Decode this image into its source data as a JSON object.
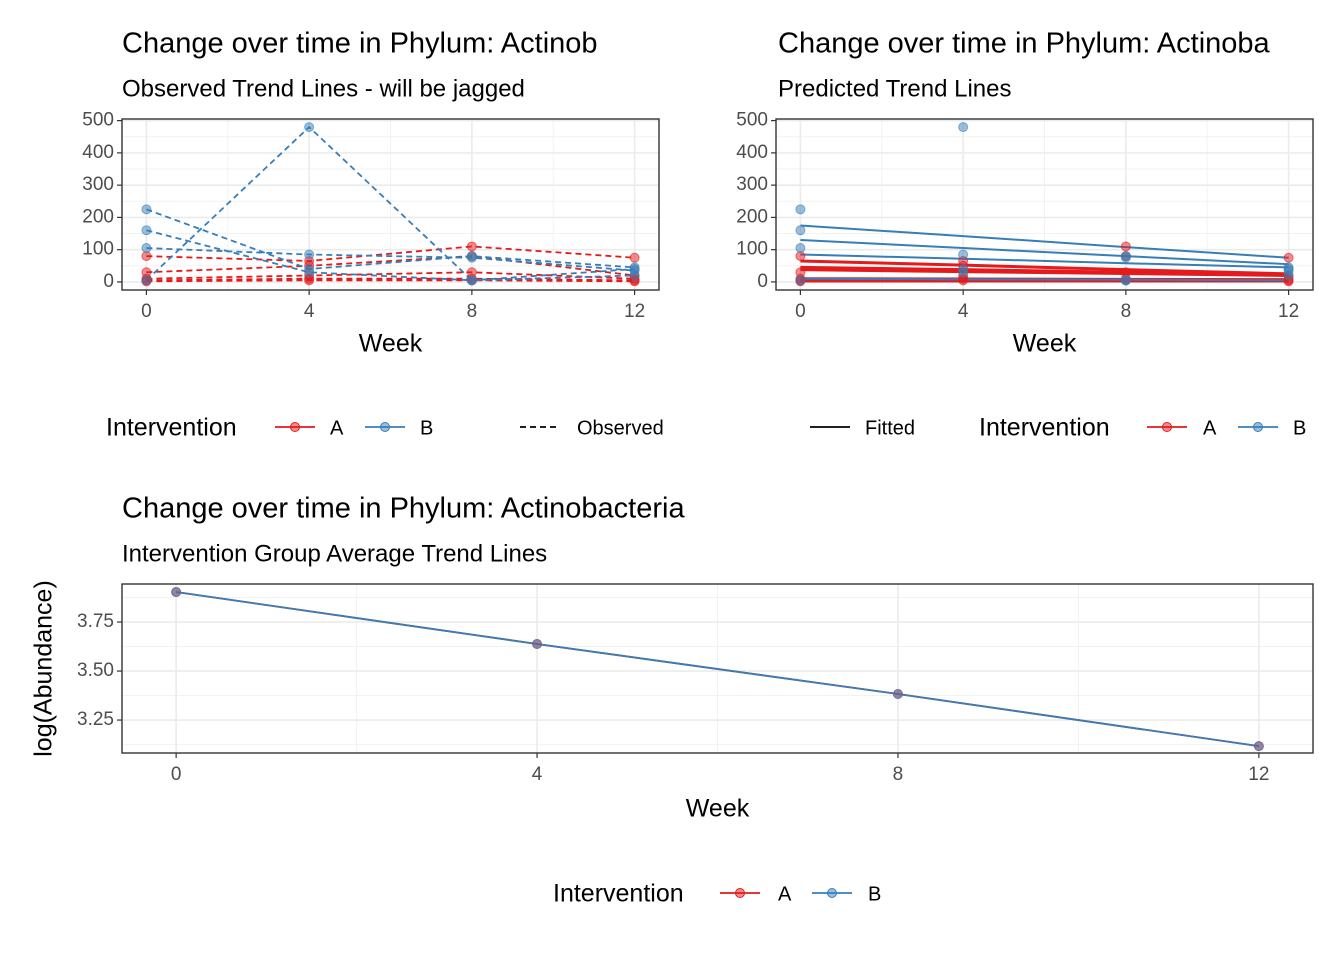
{
  "chart_data": [
    {
      "type": "line",
      "title": "Change over time in Phylum: Actinob",
      "subtitle": "Observed Trend Lines - will be jagged",
      "xlabel": "Week",
      "x": [
        0,
        4,
        8,
        12
      ],
      "xlim": [
        -0.6,
        12.6
      ],
      "xticks": [
        0,
        4,
        8,
        12
      ],
      "minor_xticks": [
        2,
        6,
        10
      ],
      "ylim": [
        -25,
        505
      ],
      "yticks": [
        0,
        100,
        200,
        300,
        400,
        500
      ],
      "minor_yticks": [
        50,
        150,
        250,
        350,
        450
      ],
      "grid": true,
      "linestyle": "dashed",
      "series": [
        {
          "color": "#E41A1C",
          "values": [
            80,
            65,
            110,
            75
          ]
        },
        {
          "color": "#E41A1C",
          "values": [
            30,
            50,
            80,
            20
          ]
        },
        {
          "color": "#E41A1C",
          "values": [
            10,
            20,
            30,
            10
          ]
        },
        {
          "color": "#E41A1C",
          "values": [
            5,
            10,
            10,
            5
          ]
        },
        {
          "color": "#E41A1C",
          "values": [
            2,
            5,
            5,
            2
          ]
        },
        {
          "color": "#377EB8",
          "values": [
            5,
            480,
            5,
            20
          ]
        },
        {
          "color": "#377EB8",
          "values": [
            225,
            40,
            80,
            45
          ]
        },
        {
          "color": "#377EB8",
          "values": [
            105,
            85,
            75,
            35
          ]
        },
        {
          "color": "#377EB8",
          "values": [
            160,
            30,
            5,
            40
          ]
        }
      ],
      "legend": {
        "title": "Intervention",
        "items": [
          {
            "label": "A",
            "color": "#E41A1C"
          },
          {
            "label": "B",
            "color": "#377EB8"
          }
        ]
      },
      "linetype_legend": {
        "label": "Observed",
        "style": "dashed"
      }
    },
    {
      "type": "line",
      "title": "Change over time in Phylum: Actinoba",
      "subtitle": "Predicted Trend Lines",
      "xlabel": "Week",
      "x": [
        0,
        4,
        8,
        12
      ],
      "xlim": [
        -0.6,
        12.6
      ],
      "xticks": [
        0,
        4,
        8,
        12
      ],
      "minor_xticks": [
        2,
        6,
        10
      ],
      "ylim": [
        -25,
        505
      ],
      "yticks": [
        0,
        100,
        200,
        300,
        400,
        500
      ],
      "minor_yticks": [
        50,
        150,
        250,
        350,
        450
      ],
      "grid": true,
      "linestyle": "solid",
      "series": [
        {
          "color": "#E41A1C",
          "values": [
            80,
            65,
            110,
            75
          ],
          "fitted": [
            65,
            52,
            38,
            25
          ]
        },
        {
          "color": "#E41A1C",
          "values": [
            30,
            50,
            80,
            20
          ],
          "fitted": [
            45,
            38,
            30,
            22
          ]
        },
        {
          "color": "#E41A1C",
          "values": [
            10,
            20,
            30,
            10
          ],
          "fitted": [
            38,
            32,
            26,
            20
          ]
        },
        {
          "color": "#E41A1C",
          "values": [
            5,
            10,
            10,
            5
          ],
          "fitted": [
            10,
            9,
            8,
            7
          ]
        },
        {
          "color": "#E41A1C",
          "values": [
            2,
            5,
            5,
            2
          ],
          "fitted": [
            3,
            3,
            3,
            3
          ]
        },
        {
          "color": "#377EB8",
          "values": [
            5,
            480,
            5,
            20
          ],
          "fitted": [
            130,
            105,
            80,
            55
          ]
        },
        {
          "color": "#377EB8",
          "values": [
            225,
            40,
            80,
            45
          ],
          "fitted": [
            175,
            142,
            108,
            75
          ]
        },
        {
          "color": "#377EB8",
          "values": [
            105,
            85,
            75,
            35
          ],
          "fitted": [
            85,
            72,
            58,
            45
          ]
        },
        {
          "color": "#377EB8",
          "values": [
            160,
            30,
            5,
            40
          ],
          "fitted": [
            10,
            8,
            7,
            5
          ]
        }
      ],
      "legend": {
        "title": "Intervention",
        "items": [
          {
            "label": "A",
            "color": "#E41A1C"
          },
          {
            "label": "B",
            "color": "#377EB8"
          }
        ]
      },
      "linetype_legend": {
        "label": "Fitted",
        "style": "solid"
      }
    },
    {
      "type": "line",
      "title": "Change over time in Phylum: Actinobacteria",
      "subtitle": "Intervention Group Average Trend Lines",
      "xlabel": "Week",
      "ylabel": "log(Abundance)",
      "x": [
        0,
        4,
        8,
        12
      ],
      "xlim": [
        -0.6,
        12.6
      ],
      "xticks": [
        0,
        4,
        8,
        12
      ],
      "minor_xticks": [
        2,
        6,
        10
      ],
      "ylim": [
        3.082,
        3.944
      ],
      "yticks": [
        3.25,
        {
          "value": 3.5,
          "label": "3.50"
        },
        3.75
      ],
      "minor_yticks": [
        3.125,
        3.375,
        3.625,
        3.875
      ],
      "grid": true,
      "linestyle": "solid",
      "series": [
        {
          "name": "A",
          "color": "#E41A1C",
          "values": [
            3.903,
            3.638,
            3.383,
            3.117
          ]
        },
        {
          "name": "B",
          "color": "#377EB8",
          "values": [
            3.903,
            3.638,
            3.383,
            3.117
          ]
        }
      ],
      "legend": {
        "title": "Intervention",
        "items": [
          {
            "label": "A",
            "color": "#E41A1C"
          },
          {
            "label": "B",
            "color": "#377EB8"
          }
        ]
      }
    }
  ]
}
